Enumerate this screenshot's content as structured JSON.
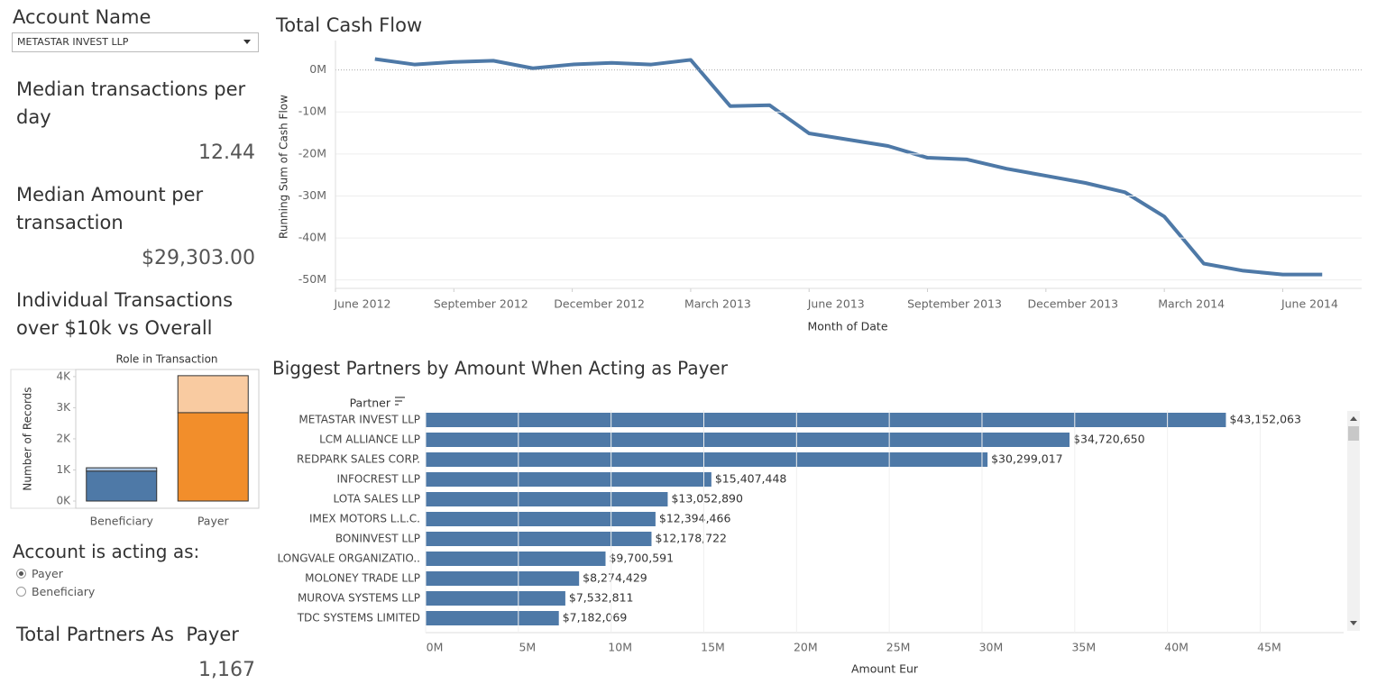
{
  "account_filter": {
    "label": "Account Name",
    "value": "METASTAR INVEST LLP"
  },
  "kpis": [
    {
      "label": "Median transactions per day",
      "value": "12.44"
    },
    {
      "label": "Median Amount per transaction",
      "value": "$29,303.00"
    }
  ],
  "role_filter": {
    "label": "Account is acting as:",
    "options": [
      "Payer",
      "Beneficiary"
    ],
    "selected": "Payer"
  },
  "total_partners": {
    "label": "Total Partners As  Payer",
    "value": "1,167"
  },
  "chart_data": [
    {
      "type": "line",
      "title": "Total Cash Flow",
      "x_label": "Month of Date",
      "y_label": "Running Sum of Cash Flow",
      "x": [
        "2012-07",
        "2012-08",
        "2012-09",
        "2012-10",
        "2012-11",
        "2012-12",
        "2013-01",
        "2013-02",
        "2013-03",
        "2013-04",
        "2013-05",
        "2013-06",
        "2013-07",
        "2013-08",
        "2013-09",
        "2013-10",
        "2013-11",
        "2013-12",
        "2014-01",
        "2014-02",
        "2014-03",
        "2014-04",
        "2014-05",
        "2014-06",
        "2014-07"
      ],
      "values": [
        2.6,
        1.3,
        1.9,
        2.2,
        0.4,
        1.3,
        1.7,
        1.3,
        2.4,
        -8.6,
        -8.4,
        -15.1,
        -16.6,
        -18.1,
        -20.9,
        -21.3,
        -23.5,
        -25.2,
        -26.9,
        -29.1,
        -34.9,
        -46.1,
        -47.8,
        -48.7,
        -48.7
      ],
      "color": "#4e79a7",
      "xlim": [
        "2012-06",
        "2014-08"
      ],
      "xticks": [
        {
          "value": "2012-06",
          "label": "June 2012"
        },
        {
          "value": "2012-09",
          "label": "September 2012"
        },
        {
          "value": "2012-12",
          "label": "December 2012"
        },
        {
          "value": "2013-03",
          "label": "March 2013"
        },
        {
          "value": "2013-06",
          "label": "June 2013"
        },
        {
          "value": "2013-09",
          "label": "September 2013"
        },
        {
          "value": "2013-12",
          "label": "December 2013"
        },
        {
          "value": "2014-03",
          "label": "March 2014"
        },
        {
          "value": "2014-06",
          "label": "June 2014"
        }
      ],
      "ylim": [
        -52,
        7
      ],
      "yticks": [
        {
          "value": 0,
          "label": "0M"
        },
        {
          "value": -10,
          "label": "-10M"
        },
        {
          "value": -20,
          "label": "-20M"
        },
        {
          "value": -30,
          "label": "-30M"
        },
        {
          "value": -40,
          "label": "-40M"
        },
        {
          "value": -50,
          "label": "-50M"
        }
      ],
      "grid": true
    },
    {
      "type": "bar",
      "title": "Individual Transactions over $10k vs Overall",
      "header": "Role in Transaction",
      "y_label": "Number of Records",
      "categories": [
        "Beneficiary",
        "Payer"
      ],
      "stacked": true,
      "series": [
        {
          "colors": [
            "#4e79a7",
            "#f28e2b"
          ],
          "values": [
            960,
            2840
          ]
        },
        {
          "colors": [
            "#a9c3e0",
            "#f9cba1"
          ],
          "values": [
            110,
            1190
          ]
        }
      ],
      "ylim": [
        0,
        4200
      ],
      "yticks": [
        {
          "value": 0,
          "label": "0K"
        },
        {
          "value": 1000,
          "label": "1K"
        },
        {
          "value": 2000,
          "label": "2K"
        },
        {
          "value": 3000,
          "label": "3K"
        },
        {
          "value": 4000,
          "label": "4K"
        }
      ]
    },
    {
      "type": "bar",
      "orientation": "horizontal",
      "title": "Biggest Partners by Amount When Acting as Payer",
      "y_label": "Partner",
      "x_label": "Amount Eur",
      "categories": [
        "METASTAR INVEST LLP",
        "LCM ALLIANCE LLP",
        "REDPARK SALES CORP.",
        "INFOCREST LLP",
        "LOTA SALES LLP",
        "IMEX MOTORS L.L.C.",
        "BONINVEST LLP",
        "LONGVALE ORGANIZATIO..",
        "MOLONEY TRADE LLP",
        "MUROVA SYSTEMS LLP",
        "TDC SYSTEMS LIMITED"
      ],
      "values": [
        43.152063,
        34.72065,
        30.299017,
        15.407448,
        13.05289,
        12.394466,
        12.178722,
        9.700591,
        8.274429,
        7.532811,
        7.182069
      ],
      "value_labels": [
        "$43,152,063",
        "$34,720,650",
        "$30,299,017",
        "$15,407,448",
        "$13,052,890",
        "$12,394,466",
        "$12,178,722",
        "$9,700,591",
        "$8,274,429",
        "$7,532,811",
        "$7,182,069"
      ],
      "color": "#4e79a7",
      "xlim": [
        0,
        49.5
      ],
      "xticks": [
        {
          "value": 0,
          "label": "0M"
        },
        {
          "value": 5,
          "label": "5M"
        },
        {
          "value": 10,
          "label": "10M"
        },
        {
          "value": 15,
          "label": "15M"
        },
        {
          "value": 20,
          "label": "20M"
        },
        {
          "value": 25,
          "label": "25M"
        },
        {
          "value": 30,
          "label": "30M"
        },
        {
          "value": 35,
          "label": "35M"
        },
        {
          "value": 40,
          "label": "40M"
        },
        {
          "value": 45,
          "label": "45M"
        }
      ],
      "grid": true
    }
  ]
}
